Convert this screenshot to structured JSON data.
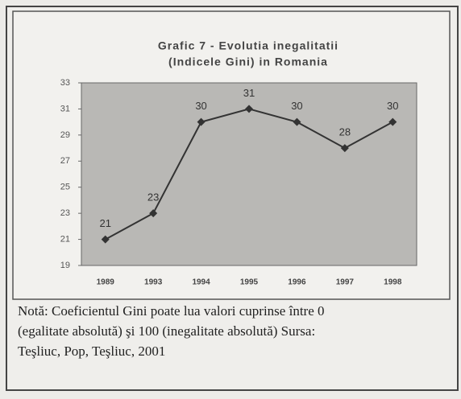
{
  "chart_data": {
    "type": "line",
    "title": [
      "Grafic 7 - Evolutia inegalitatii",
      "(Indicele Gini) in Romania"
    ],
    "categories": [
      "1989",
      "1993",
      "1994",
      "1995",
      "1996",
      "1997",
      "1998"
    ],
    "values": [
      21,
      23,
      30,
      31,
      30,
      28,
      30
    ],
    "color": "#333333",
    "ylim": [
      19,
      33
    ],
    "yticks": [
      19,
      21,
      23,
      25,
      27,
      29,
      31,
      33
    ],
    "grid": false,
    "note": [
      "Notă: Coeficientul Gini poate lua valori cuprinse între 0",
      "(egalitate absolută) şi 100 (inegalitate absolută) Sursa:",
      "Teşliuc, Pop, Teşliuc, 2001"
    ]
  }
}
